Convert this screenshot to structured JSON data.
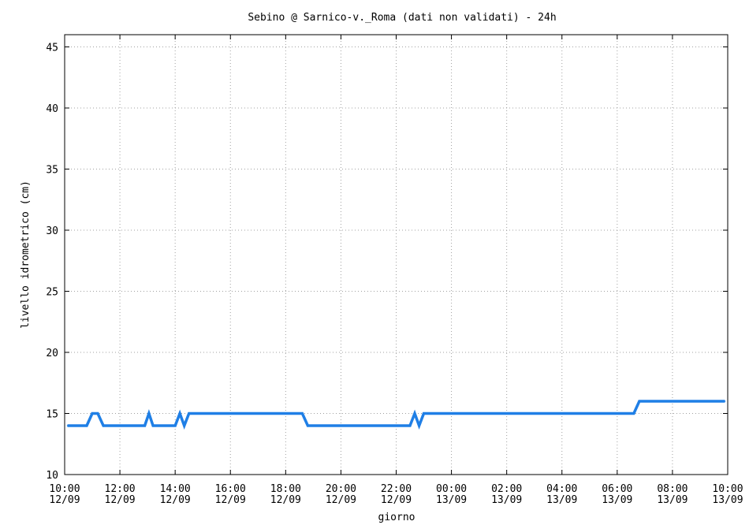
{
  "chart_data": {
    "type": "line",
    "title": "Sebino @ Sarnico-v._Roma (dati non validati) - 24h",
    "xlabel": "giorno",
    "ylabel": "livello idrometrico (cm)",
    "ylim": [
      10,
      46
    ],
    "yticks": [
      10,
      15,
      20,
      25,
      30,
      35,
      40,
      45
    ],
    "xlim_hours": [
      0,
      24
    ],
    "xticks": [
      {
        "hour": 0,
        "time": "10:00",
        "date": "12/09"
      },
      {
        "hour": 2,
        "time": "12:00",
        "date": "12/09"
      },
      {
        "hour": 4,
        "time": "14:00",
        "date": "12/09"
      },
      {
        "hour": 6,
        "time": "16:00",
        "date": "12/09"
      },
      {
        "hour": 8,
        "time": "18:00",
        "date": "12/09"
      },
      {
        "hour": 10,
        "time": "20:00",
        "date": "12/09"
      },
      {
        "hour": 12,
        "time": "22:00",
        "date": "12/09"
      },
      {
        "hour": 14,
        "time": "00:00",
        "date": "13/09"
      },
      {
        "hour": 16,
        "time": "02:00",
        "date": "13/09"
      },
      {
        "hour": 18,
        "time": "04:00",
        "date": "13/09"
      },
      {
        "hour": 20,
        "time": "06:00",
        "date": "13/09"
      },
      {
        "hour": 22,
        "time": "08:00",
        "date": "13/09"
      },
      {
        "hour": 24,
        "time": "10:00",
        "date": "13/09"
      }
    ],
    "grid": true,
    "series": [
      {
        "color": "#1f7fe6",
        "points": [
          [
            0.1,
            14
          ],
          [
            0.8,
            14
          ],
          [
            1.0,
            15
          ],
          [
            1.2,
            15
          ],
          [
            1.4,
            14
          ],
          [
            2.9,
            14
          ],
          [
            3.05,
            15
          ],
          [
            3.2,
            14
          ],
          [
            4.0,
            14
          ],
          [
            4.17,
            15
          ],
          [
            4.33,
            14
          ],
          [
            4.5,
            15
          ],
          [
            8.6,
            15
          ],
          [
            8.8,
            14
          ],
          [
            12.5,
            14
          ],
          [
            12.67,
            15
          ],
          [
            12.83,
            14
          ],
          [
            13.0,
            15
          ],
          [
            20.6,
            15
          ],
          [
            20.8,
            16
          ],
          [
            23.9,
            16
          ]
        ]
      }
    ]
  }
}
